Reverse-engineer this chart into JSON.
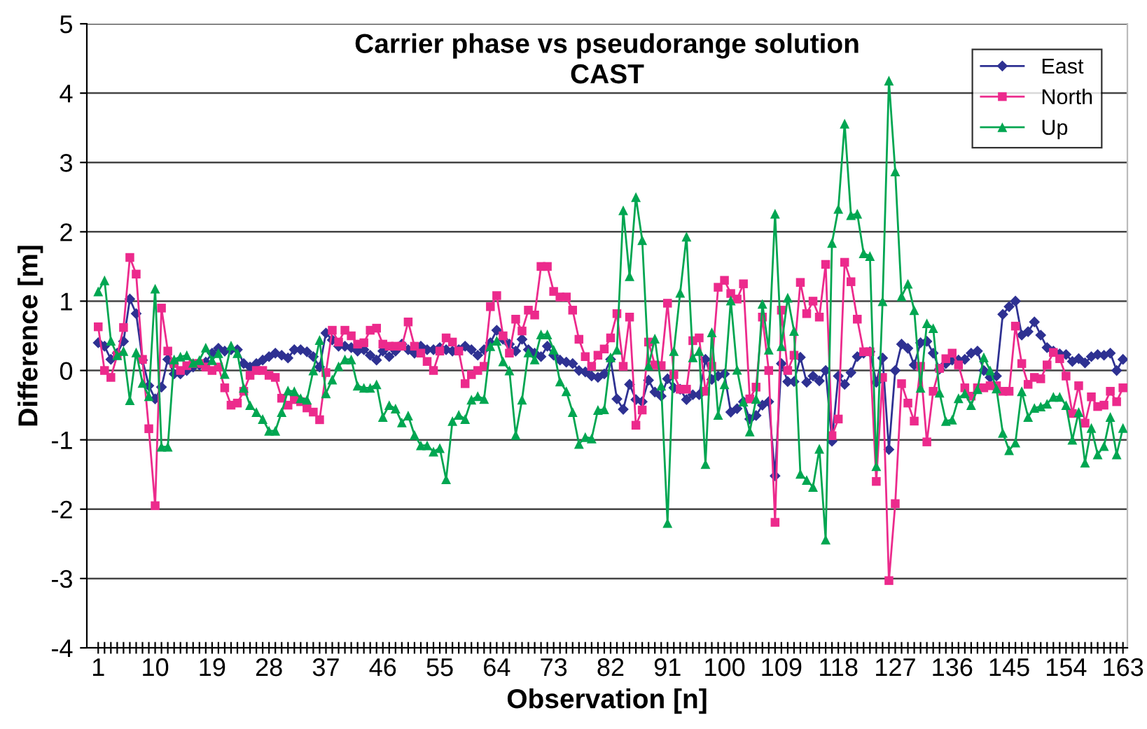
{
  "chart_data": {
    "type": "line",
    "title": "Carrier phase vs pseudorange solution",
    "subtitle": "CAST",
    "xlabel": "Observation [n]",
    "ylabel": "Difference [m]",
    "categories": [
      "1",
      null,
      null,
      null,
      null,
      null,
      null,
      null,
      null,
      "10",
      null,
      null,
      null,
      null,
      null,
      null,
      null,
      null,
      "19",
      null,
      null,
      null,
      null,
      null,
      null,
      null,
      null,
      "28",
      null,
      null,
      null,
      null,
      null,
      null,
      null,
      null,
      "37",
      null,
      null,
      null,
      null,
      null,
      null,
      null,
      null,
      "46",
      null,
      null,
      null,
      null,
      null,
      null,
      null,
      null,
      "55",
      null,
      null,
      null,
      null,
      null,
      null,
      null,
      null,
      "64",
      null,
      null,
      null,
      null,
      null,
      null,
      null,
      null,
      "73",
      null,
      null,
      null,
      null,
      null,
      null,
      null,
      null,
      "82",
      null,
      null,
      null,
      null,
      null,
      null,
      null,
      null,
      "91",
      null,
      null,
      null,
      null,
      null,
      null,
      null,
      null,
      "100",
      null,
      null,
      null,
      null,
      null,
      null,
      null,
      null,
      "109",
      null,
      null,
      null,
      null,
      null,
      null,
      null,
      null,
      "118",
      null,
      null,
      null,
      null,
      null,
      null,
      null,
      null,
      "127",
      null,
      null,
      null,
      null,
      null,
      null,
      null,
      null,
      "136",
      null,
      null,
      null,
      null,
      null,
      null,
      null,
      null,
      "145",
      null,
      null,
      null,
      null,
      null,
      null,
      null,
      null,
      "154",
      null,
      null,
      null,
      null,
      null,
      null,
      null,
      null,
      "163"
    ],
    "series": [
      {
        "name": "East",
        "color": "#2e3192",
        "marker": "diamond",
        "values": [
          0.4,
          0.35,
          0.16,
          0.25,
          0.42,
          1.03,
          0.82,
          0.15,
          -0.22,
          -0.41,
          -0.24,
          0.16,
          -0.05,
          -0.05,
          0.0,
          0.05,
          0.08,
          0.12,
          0.25,
          0.32,
          0.28,
          0.3,
          0.3,
          0.1,
          0.05,
          0.1,
          0.15,
          0.2,
          0.25,
          0.22,
          0.18,
          0.3,
          0.3,
          0.27,
          0.2,
          0.05,
          0.54,
          0.44,
          0.35,
          0.35,
          0.33,
          0.28,
          0.3,
          0.22,
          0.15,
          0.28,
          0.2,
          0.28,
          0.38,
          0.3,
          0.25,
          0.35,
          0.3,
          0.3,
          0.33,
          0.3,
          0.28,
          0.3,
          0.35,
          0.3,
          0.22,
          0.3,
          0.4,
          0.58,
          0.45,
          0.38,
          0.28,
          0.45,
          0.3,
          0.25,
          0.2,
          0.35,
          0.22,
          0.15,
          0.12,
          0.1,
          0.0,
          -0.02,
          -0.08,
          -0.1,
          -0.05,
          0.16,
          -0.41,
          -0.56,
          -0.2,
          -0.42,
          -0.45,
          -0.14,
          -0.31,
          -0.37,
          -0.12,
          -0.25,
          -0.27,
          -0.42,
          -0.35,
          -0.35,
          0.16,
          -0.13,
          -0.08,
          -0.05,
          -0.6,
          -0.55,
          -0.45,
          -0.7,
          -0.65,
          -0.5,
          -0.45,
          -1.52,
          0.1,
          -0.16,
          -0.16,
          0.19,
          -0.17,
          -0.08,
          -0.15,
          0.0,
          -1.02,
          -0.08,
          -0.2,
          -0.03,
          0.2,
          0.25,
          0.27,
          -0.17,
          0.18,
          -1.14,
          0.0,
          0.38,
          0.32,
          0.08,
          0.4,
          0.42,
          0.25,
          0.02,
          0.1,
          0.15,
          0.15,
          0.16,
          0.25,
          0.28,
          0.0,
          -0.1,
          -0.08,
          0.81,
          0.92,
          1.0,
          0.51,
          0.56,
          0.7,
          0.51,
          0.33,
          0.28,
          0.24,
          0.23,
          0.13,
          0.17,
          0.11,
          0.2,
          0.23,
          0.22,
          0.25,
          0.0,
          0.16
        ]
      },
      {
        "name": "North",
        "color": "#ec2a8c",
        "marker": "square",
        "values": [
          0.63,
          0.0,
          -0.1,
          0.22,
          0.62,
          1.63,
          1.39,
          0.16,
          -0.84,
          -1.95,
          0.9,
          0.28,
          0.1,
          0.0,
          0.07,
          0.1,
          0.1,
          0.05,
          0.0,
          0.05,
          -0.25,
          -0.5,
          -0.47,
          -0.3,
          -0.07,
          0.0,
          0.0,
          -0.07,
          -0.1,
          -0.4,
          -0.5,
          -0.42,
          -0.45,
          -0.54,
          -0.6,
          -0.71,
          -0.03,
          0.58,
          0.41,
          0.58,
          0.5,
          0.38,
          0.4,
          0.58,
          0.61,
          0.38,
          0.35,
          0.35,
          0.35,
          0.7,
          0.35,
          0.25,
          0.13,
          0.0,
          0.28,
          0.47,
          0.41,
          0.28,
          -0.19,
          -0.06,
          0.0,
          0.06,
          0.92,
          1.08,
          0.5,
          0.25,
          0.74,
          0.57,
          0.87,
          0.8,
          1.5,
          1.5,
          1.14,
          1.06,
          1.06,
          0.87,
          0.45,
          0.2,
          0.06,
          0.22,
          0.31,
          0.47,
          0.82,
          0.06,
          0.77,
          -0.79,
          -0.57,
          0.41,
          0.08,
          0.07,
          0.97,
          -0.06,
          -0.27,
          -0.27,
          0.43,
          0.47,
          -0.3,
          0.06,
          1.2,
          1.3,
          1.11,
          1.03,
          1.25,
          -0.41,
          -0.24,
          0.77,
          0.0,
          -2.19,
          0.87,
          0.0,
          0.22,
          1.27,
          0.82,
          1.0,
          0.77,
          1.53,
          -0.94,
          -0.7,
          1.56,
          1.28,
          0.74,
          0.27,
          0.27,
          -1.6,
          -0.1,
          -3.03,
          -1.92,
          -0.19,
          -0.47,
          -0.73,
          0.06,
          -1.03,
          -0.3,
          0.03,
          0.17,
          0.25,
          0.08,
          -0.25,
          -0.37,
          -0.25,
          -0.25,
          -0.22,
          -0.22,
          -0.3,
          -0.3,
          0.64,
          0.1,
          -0.2,
          -0.1,
          -0.12,
          0.08,
          0.26,
          0.17,
          -0.08,
          -0.62,
          -0.22,
          -0.76,
          -0.38,
          -0.52,
          -0.5,
          -0.3,
          -0.45,
          -0.25
        ]
      },
      {
        "name": "Up",
        "color": "#00a651",
        "marker": "triangle",
        "values": [
          1.14,
          1.3,
          0.43,
          0.22,
          0.28,
          -0.43,
          0.26,
          -0.18,
          -0.37,
          1.18,
          -1.1,
          -1.1,
          0.16,
          0.2,
          0.22,
          0.11,
          0.15,
          0.33,
          0.15,
          0.25,
          -0.05,
          0.36,
          0.25,
          -0.25,
          -0.5,
          -0.6,
          -0.7,
          -0.87,
          -0.87,
          -0.6,
          -0.29,
          -0.3,
          -0.4,
          -0.42,
          0.0,
          0.44,
          -0.33,
          -0.13,
          0.06,
          0.16,
          0.16,
          -0.22,
          -0.25,
          -0.25,
          -0.2,
          -0.67,
          -0.5,
          -0.55,
          -0.75,
          -0.65,
          -0.93,
          -1.08,
          -1.08,
          -1.17,
          -1.12,
          -1.57,
          -0.73,
          -0.64,
          -0.7,
          -0.42,
          -0.37,
          -0.41,
          0.35,
          0.43,
          0.13,
          0.0,
          -0.93,
          -0.42,
          0.26,
          0.16,
          0.52,
          0.52,
          0.3,
          -0.16,
          -0.3,
          -0.6,
          -1.06,
          -0.96,
          -0.98,
          -0.57,
          -0.56,
          0.19,
          0.3,
          2.31,
          1.36,
          2.5,
          1.88,
          0.07,
          0.46,
          -0.22,
          -2.2,
          0.28,
          1.12,
          1.93,
          0.19,
          0.28,
          -1.35,
          0.55,
          -0.64,
          -0.2,
          1.01,
          0.01,
          -0.45,
          -0.88,
          -0.41,
          0.96,
          0.3,
          2.26,
          0.35,
          1.05,
          0.57,
          -1.49,
          -1.58,
          -1.68,
          -1.13,
          -2.44,
          1.84,
          2.33,
          3.56,
          2.24,
          2.26,
          1.69,
          1.65,
          -1.38,
          1.0,
          4.18,
          2.87,
          1.07,
          1.25,
          0.87,
          -0.25,
          0.68,
          0.61,
          -0.32,
          -0.73,
          -0.71,
          -0.4,
          -0.33,
          -0.5,
          -0.27,
          0.19,
          0.0,
          -0.26,
          -0.9,
          -1.15,
          -1.04,
          -0.3,
          -0.67,
          -0.54,
          -0.52,
          -0.48,
          -0.38,
          -0.38,
          -0.5,
          -1.0,
          -0.6,
          -1.33,
          -0.83,
          -1.21,
          -1.09,
          -0.67,
          -1.21,
          -0.83
        ]
      }
    ],
    "ylim": [
      -4,
      5
    ],
    "yticks": [
      -4,
      -3,
      -2,
      -1,
      0,
      1,
      2,
      3,
      4,
      5
    ],
    "grid": "y",
    "legend": "top right",
    "line_style": "solid"
  }
}
